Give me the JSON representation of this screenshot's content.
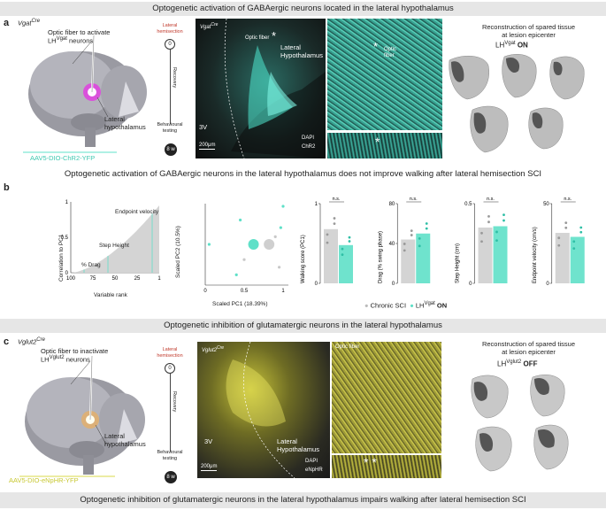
{
  "panel_a": {
    "banner": "Optogenetic activation of GABAergic neurons located in the lateral hypothalamus",
    "letter": "a",
    "mouse_line": "Vgat",
    "mouse_line_sup": "Cre",
    "fiber_label_1": "Optic fiber to activate",
    "fiber_label_2a": "LH",
    "fiber_label_2sup": "Vgat",
    "fiber_label_2b": " neurons",
    "lh_label_1": "Lateral",
    "lh_label_2": "hypothalamus",
    "virus": "AAV5-DIO-ChR2-YFP",
    "timeline_top_1": "Lateral",
    "timeline_top_2": "hemisection",
    "timeline_start": "0",
    "timeline_mid": "Recovery",
    "timeline_bottom_1": "Behavioural",
    "timeline_bottom_2": "testing",
    "timeline_end": "8 w",
    "micro_line": "Vgat",
    "micro_line_sup": "Cre",
    "micro_fiber": "Optic fiber",
    "micro_lh_1": "Lateral",
    "micro_lh_2": "Hypothalamus",
    "micro_3v": "3V",
    "micro_scale": "200μm",
    "micro_dapi": "DAPI",
    "micro_chr2": "ChR2",
    "inset_fiber_1": "Optic",
    "inset_fiber_2": "fiber",
    "recon_title_1": "Reconstruction of spared tissue",
    "recon_title_2": "at lesion epicenter",
    "recon_lh": "LH",
    "recon_sup": "Vgat",
    "recon_state": "ON"
  },
  "panel_b": {
    "letter": "b",
    "banner": "Optogenetic activation of GABAergic neurons in the lateral hypothalamus does not improve walking after lateral hemisection SCI",
    "corr_ylabel": "Correlation to PC1",
    "corr_xlabel": "Variable rank",
    "corr_yticks": [
      "1",
      "0.5",
      "0"
    ],
    "corr_xticks": [
      "100",
      "75",
      "50",
      "25",
      "1"
    ],
    "ann_endpoint": "Endpoint velocity",
    "ann_step": "Step Height",
    "ann_drag": "% Drag",
    "pca_ylabel": "Scaled PC2 (10.5%)",
    "pca_xlabel": "Scaled PC1 (18.39%)",
    "pca_xticks": [
      "0",
      "0.5",
      "1"
    ],
    "pca_yticks": [
      "1",
      "0.5",
      "0"
    ],
    "ns": "n.s.",
    "legend_chronic": "Chronic SCI",
    "legend_lh": "LH",
    "legend_lh_sup": "Vgat",
    "legend_on": "ON",
    "color_gray": "#c8c8c8",
    "color_teal": "#5fe0c8"
  },
  "chart_data": [
    {
      "type": "bar",
      "ylabel": "Walking score (PC1)",
      "yticks": [
        "1",
        "0"
      ],
      "ylim": [
        0,
        1.25
      ],
      "series": [
        {
          "name": "Chronic SCI",
          "values": [
            0.85
          ]
        },
        {
          "name": "LH Vgat ON",
          "values": [
            0.6
          ]
        }
      ]
    },
    {
      "type": "bar",
      "ylabel": "Drag (% swing phase)",
      "yticks": [
        "80",
        "40",
        "0"
      ],
      "ylim": [
        0,
        80
      ],
      "series": [
        {
          "name": "Chronic SCI",
          "values": [
            44
          ]
        },
        {
          "name": "LH Vgat ON",
          "values": [
            50
          ]
        }
      ]
    },
    {
      "type": "bar",
      "ylabel": "Step Height (cm)",
      "yticks": [
        "0.5",
        "0"
      ],
      "ylim": [
        0,
        0.6
      ],
      "series": [
        {
          "name": "Chronic SCI",
          "values": [
            0.42
          ]
        },
        {
          "name": "LH Vgat ON",
          "values": [
            0.43
          ]
        }
      ]
    },
    {
      "type": "bar",
      "ylabel": "Endpoint velocity (cm/s)",
      "yticks": [
        "50",
        "0"
      ],
      "ylim": [
        0,
        60
      ],
      "series": [
        {
          "name": "Chronic SCI",
          "values": [
            38
          ]
        },
        {
          "name": "LH Vgat ON",
          "values": [
            35
          ]
        }
      ]
    }
  ],
  "panel_c": {
    "banner": "Optogenetic inhibition of glutamatergic neurons in the lateral hypothalamus",
    "letter": "c",
    "mouse_line": "Vglut2",
    "mouse_line_sup": "Cre",
    "fiber_label_1": "Optic fiber to inactivate",
    "fiber_label_2a": "LH",
    "fiber_label_2sup": "Vglut2",
    "fiber_label_2b": " neurons",
    "lh_label_1": "Lateral",
    "lh_label_2": "hypothalamus",
    "virus": "AAV5-DIO-eNpHR-YFP",
    "timeline_top_1": "Lateral",
    "timeline_top_2": "hemisection",
    "timeline_start": "0",
    "timeline_mid": "Recovery",
    "timeline_bottom_1": "Behavioural",
    "timeline_bottom_2": "testing",
    "timeline_end": "8 w",
    "micro_line": "Vglut2",
    "micro_line_sup": "Cre",
    "micro_fiber": "Optic fiber",
    "micro_lh_1": "Lateral",
    "micro_lh_2": "Hypothalamus",
    "micro_3v": "3V",
    "micro_scale": "200μm",
    "micro_dapi": "DAPI",
    "micro_enphr": "eNpHR",
    "recon_title_1": "Reconstruction of spared tissue",
    "recon_title_2": "at lesion epicenter",
    "recon_lh": "LH",
    "recon_sup": "Vglut2",
    "recon_state": "OFF",
    "bottom_banner": "Optogenetic inhibition of glutamatergic neurons in the lateral hypothalamus impairs walking after lateral hemisection SCI"
  }
}
